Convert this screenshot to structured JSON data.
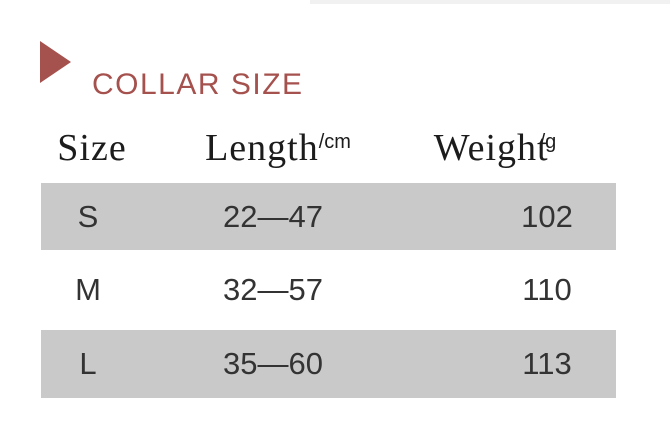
{
  "page": {
    "accent_color": "#a5514d",
    "stripe_color": "#c9c9c9",
    "text_color": "#333333"
  },
  "header": {
    "title": "COLLAR SIZE",
    "triangle_icon": "right-pointing-triangle"
  },
  "table": {
    "columns": [
      {
        "label": "Size"
      },
      {
        "label": "Length",
        "unit": "/cm"
      },
      {
        "label": "Weight",
        "unit": "/g"
      }
    ],
    "rows": [
      {
        "size": "S",
        "length": "22—47",
        "weight": "102"
      },
      {
        "size": "M",
        "length": "32—57",
        "weight": "110"
      },
      {
        "size": "L",
        "length": "35—60",
        "weight": "113"
      }
    ]
  },
  "chart_data": {
    "type": "table",
    "title": "COLLAR SIZE",
    "columns": [
      "Size",
      "Length/cm",
      "Weight/g"
    ],
    "rows": [
      [
        "S",
        "22—47",
        "102"
      ],
      [
        "M",
        "32—57",
        "110"
      ],
      [
        "L",
        "35—60",
        "113"
      ]
    ]
  }
}
